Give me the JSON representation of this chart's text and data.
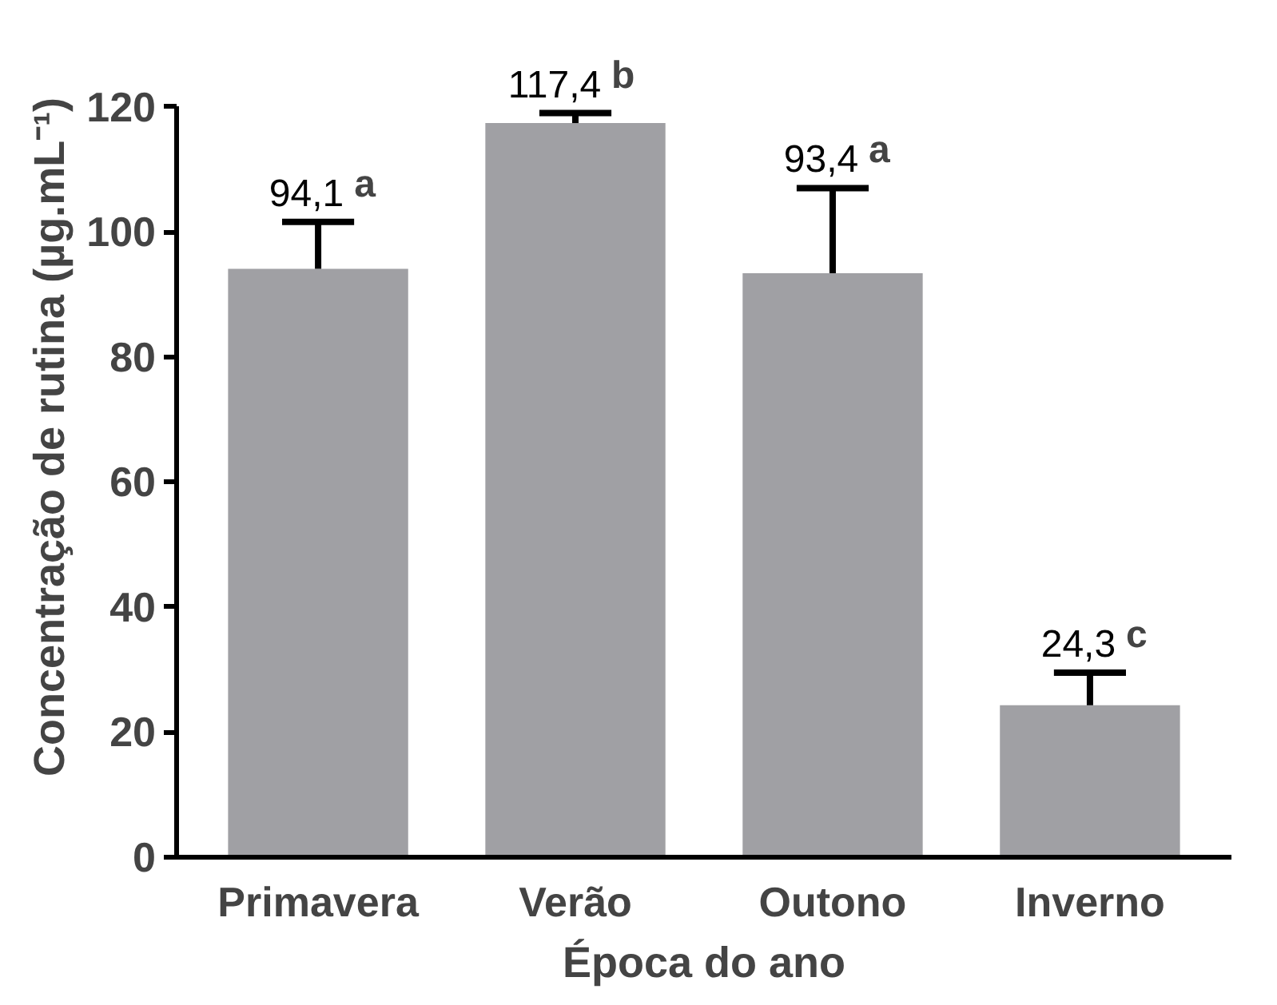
{
  "chart_data": {
    "type": "bar",
    "xlabel": "Época do ano",
    "ylabel": "Concentração de rutina (µg.mL⁻¹)",
    "categories": [
      "Primavera",
      "Verão",
      "Outono",
      "Inverno"
    ],
    "values": [
      94.1,
      117.4,
      93.4,
      24.3
    ],
    "value_labels": [
      "94,1",
      "117,4",
      "93,4",
      "24,3"
    ],
    "errors": [
      [
        94.1,
        101.6
      ],
      [
        117.4,
        119.0
      ],
      [
        93.4,
        107.0
      ],
      [
        24.3,
        29.5
      ]
    ],
    "color": "#a0a0a4",
    "ylim": [
      0,
      120
    ],
    "yticks": [
      0,
      20,
      40,
      60,
      80,
      100,
      120
    ],
    "grid": false,
    "annotations": [
      {
        "text": "a",
        "x": "Primavera",
        "y": 101.6
      },
      {
        "text": "b",
        "x": "Verão",
        "y": 119.0
      },
      {
        "text": "a",
        "x": "Outono",
        "y": 107.0
      },
      {
        "text": "c",
        "x": "Inverno",
        "y": 29.5
      }
    ]
  }
}
